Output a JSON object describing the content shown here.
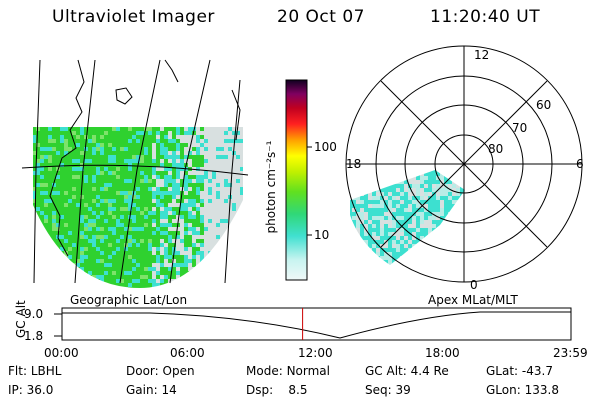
{
  "header": {
    "title": "Ultraviolet Imager",
    "date": "20 Oct 07",
    "time": "11:20:40 UT"
  },
  "colors": {
    "land_green": "#2fd12f",
    "aurora_cyan": "#3de0d0",
    "low_grey": "#d8e0e0",
    "timeline_marker": "#cc0000"
  },
  "geo_panel": {
    "label": "Geographic Lat/Lon",
    "description_icon": "map-projection"
  },
  "polar_panel": {
    "label": "Apex MLat/MLT",
    "mlt_labels": {
      "top": "12",
      "right": "6",
      "bottom": "0",
      "left": "18"
    },
    "lat_labels": [
      "60",
      "70",
      "80"
    ]
  },
  "colorbar": {
    "unit_label": "photon cm⁻²s⁻¹",
    "ticks": [
      {
        "label": "100",
        "value": 100
      },
      {
        "label": "10",
        "value": 10
      }
    ],
    "range": [
      2,
      1000
    ],
    "scale": "log"
  },
  "timeline": {
    "ylabel": "GC Alt",
    "y_ticks": [
      "9.0",
      "1.8"
    ],
    "x_ticks": [
      "00:00",
      "06:00",
      "12:00",
      "18:00",
      "23:59"
    ],
    "current_time_fraction": 0.4727
  },
  "info_rows": [
    [
      {
        "label": "Flt:",
        "value": "LBHL"
      },
      {
        "label": "Door:",
        "value": "Open"
      },
      {
        "label": "Mode:",
        "value": "Normal"
      },
      {
        "label": "GC Alt:",
        "value": "4.4 Re"
      },
      {
        "label": "GLat:",
        "value": "-43.7"
      }
    ],
    [
      {
        "label": "IP:",
        "value": "36.0"
      },
      {
        "label": "Gain:",
        "value": "14"
      },
      {
        "label": "Dsp:",
        "value": "8.5"
      },
      {
        "label": "Seq:",
        "value": "39"
      },
      {
        "label": "GLon:",
        "value": "133.8"
      }
    ]
  ]
}
